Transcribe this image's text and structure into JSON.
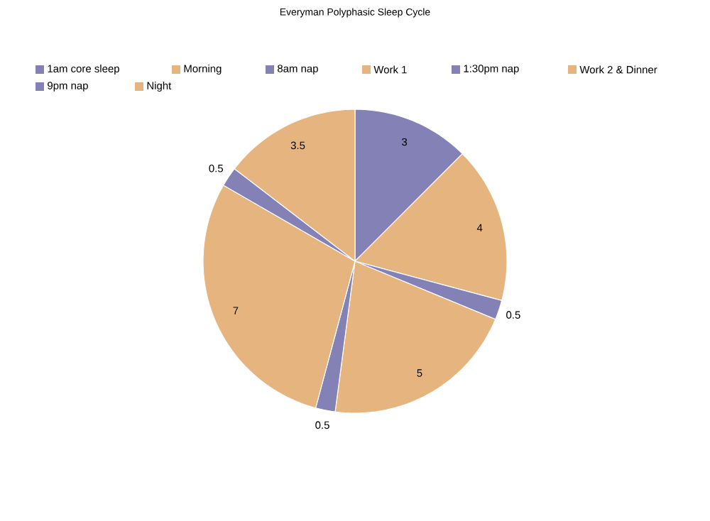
{
  "chart_data": {
    "type": "pie",
    "title": "Everyman Polyphasic Sleep Cycle",
    "categories": [
      "1am core sleep",
      "Morning",
      "8am nap",
      "Work 1",
      "1:30pm nap",
      "Work 2 & Dinner",
      "9pm nap",
      "Night"
    ],
    "values": [
      3,
      4,
      0.5,
      5,
      0.5,
      7,
      0.5,
      3.5
    ],
    "colors": [
      "#8381b5",
      "#e6b47f",
      "#8381b5",
      "#e6b47f",
      "#8381b5",
      "#e6b47f",
      "#8381b5",
      "#e6b47f"
    ],
    "data_labels": true,
    "legend": "top"
  }
}
